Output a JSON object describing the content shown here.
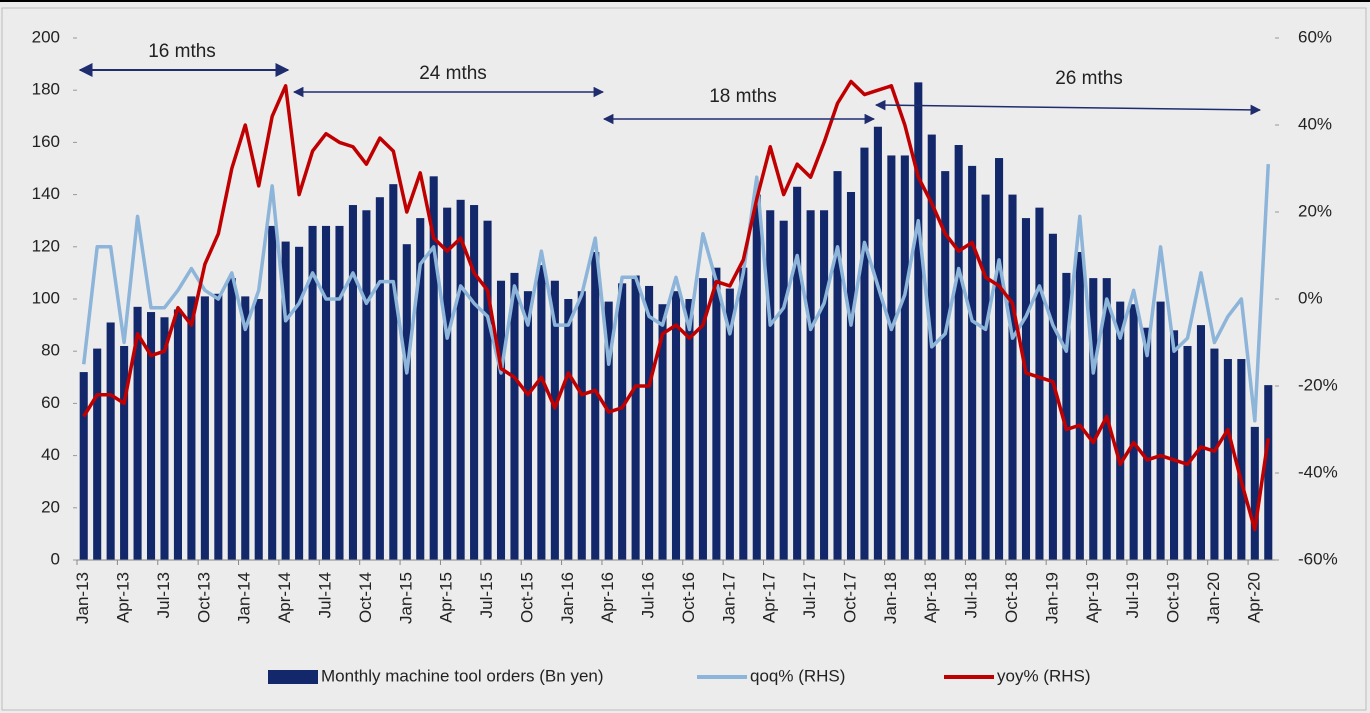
{
  "chart_data": {
    "type": "bar",
    "categories": [
      "Jan-13",
      null,
      null,
      "Apr-13",
      null,
      null,
      "Jul-13",
      null,
      null,
      "Oct-13",
      null,
      null,
      "Jan-14",
      null,
      null,
      "Apr-14",
      null,
      null,
      "Jul-14",
      null,
      null,
      "Oct-14",
      null,
      null,
      "Jan-15",
      null,
      null,
      "Apr-15",
      null,
      null,
      "Jul-15",
      null,
      null,
      "Oct-15",
      null,
      null,
      "Jan-16",
      null,
      null,
      "Apr-16",
      null,
      null,
      "Jul-16",
      null,
      null,
      "Oct-16",
      null,
      null,
      "Jan-17",
      null,
      null,
      "Apr-17",
      null,
      null,
      "Jul-17",
      null,
      null,
      "Oct-17",
      null,
      null,
      "Jan-18",
      null,
      null,
      "Apr-18",
      null,
      null,
      "Jul-18",
      null,
      null,
      "Oct-18",
      null,
      null,
      "Jan-19",
      null,
      null,
      "Apr-19",
      null,
      null,
      "Jul-19",
      null,
      null,
      "Oct-19",
      null,
      null,
      "Jan-20",
      null,
      null,
      "Apr-20",
      null
    ],
    "series": [
      {
        "name": "Monthly machine tool orders (Bn yen)",
        "color": "#12286b",
        "type": "bar",
        "values": [
          72,
          81,
          91,
          82,
          97,
          95,
          93,
          96,
          101,
          101,
          102,
          108,
          101,
          100,
          128,
          122,
          120,
          128,
          128,
          128,
          136,
          134,
          139,
          144,
          121,
          131,
          147,
          135,
          138,
          136,
          130,
          107,
          110,
          103,
          113,
          107,
          100,
          103,
          118,
          99,
          106,
          109,
          105,
          98,
          103,
          100,
          108,
          112,
          104,
          112,
          140,
          134,
          130,
          143,
          134,
          134,
          149,
          141,
          158,
          166,
          155,
          155,
          183,
          163,
          149,
          159,
          151,
          140,
          154,
          140,
          131,
          135,
          125,
          110,
          118,
          108,
          108,
          99,
          98,
          89,
          99,
          88,
          82,
          90,
          81,
          77,
          77,
          51,
          67
        ]
      },
      {
        "name": "qoq% (RHS)",
        "color": "#8db4d9",
        "type": "line",
        "axis": "y2",
        "values": [
          -15,
          12,
          12,
          -10,
          19,
          -2,
          -2,
          2,
          7,
          2,
          0,
          6,
          -7,
          2,
          26,
          -5,
          -1,
          6,
          0,
          0,
          6,
          -1,
          4,
          4,
          -17,
          8,
          12,
          -9,
          3,
          -1,
          -4,
          -17,
          3,
          -6,
          11,
          -6,
          -6,
          1,
          14,
          -15,
          5,
          5,
          -4,
          -6,
          5,
          -7,
          15,
          4,
          -8,
          6,
          28,
          -6,
          -2,
          10,
          -7,
          -1,
          12,
          -6,
          13,
          3,
          -7,
          1,
          18,
          -11,
          -8,
          7,
          -5,
          -7,
          9,
          -9,
          -4,
          3,
          -6,
          -12,
          19,
          -17,
          0,
          -9,
          2,
          -13,
          12,
          -12,
          -9,
          6,
          -10,
          -4,
          0,
          -28,
          31
        ]
      },
      {
        "name": "yoy% (RHS)",
        "color": "#c00000",
        "type": "line",
        "axis": "y2",
        "values": [
          -27,
          -22,
          -22,
          -24,
          -8,
          -13,
          -12,
          -2,
          -6,
          8,
          15,
          30,
          40,
          26,
          42,
          49,
          24,
          34,
          38,
          36,
          35,
          31,
          37,
          34,
          20,
          29,
          14,
          11,
          14,
          6,
          2,
          -16,
          -18,
          -22,
          -18,
          -25,
          -17,
          -22,
          -21,
          -26,
          -25,
          -20,
          -20,
          -8,
          -6,
          -9,
          -6,
          4,
          3,
          9,
          23,
          35,
          24,
          31,
          28,
          36,
          45,
          50,
          47,
          48,
          49,
          40,
          28,
          22,
          15,
          11,
          13,
          5,
          3,
          -1,
          -17,
          -18,
          -19,
          -30,
          -29,
          -33,
          -27,
          -38,
          -33,
          -37,
          -36,
          -37,
          -38,
          -34,
          -35,
          -30,
          -42,
          -53,
          -32
        ]
      }
    ],
    "ylim": [
      0,
      200
    ],
    "yticks": [
      0,
      20,
      40,
      60,
      80,
      100,
      120,
      140,
      160,
      180,
      200
    ],
    "y2lim": [
      -60,
      60
    ],
    "y2ticks": [
      {
        "value": -60,
        "label": "-60%"
      },
      {
        "value": -40,
        "label": "-40%"
      },
      {
        "value": -20,
        "label": "-20%"
      },
      {
        "value": 0,
        "label": "0%"
      },
      {
        "value": 20,
        "label": "20%"
      },
      {
        "value": 40,
        "label": "40%"
      },
      {
        "value": 60,
        "label": "60%"
      }
    ],
    "annotations": [
      "16 mths",
      "24 mths",
      "18 mths",
      "26 mths"
    ],
    "legend": "bottom"
  }
}
